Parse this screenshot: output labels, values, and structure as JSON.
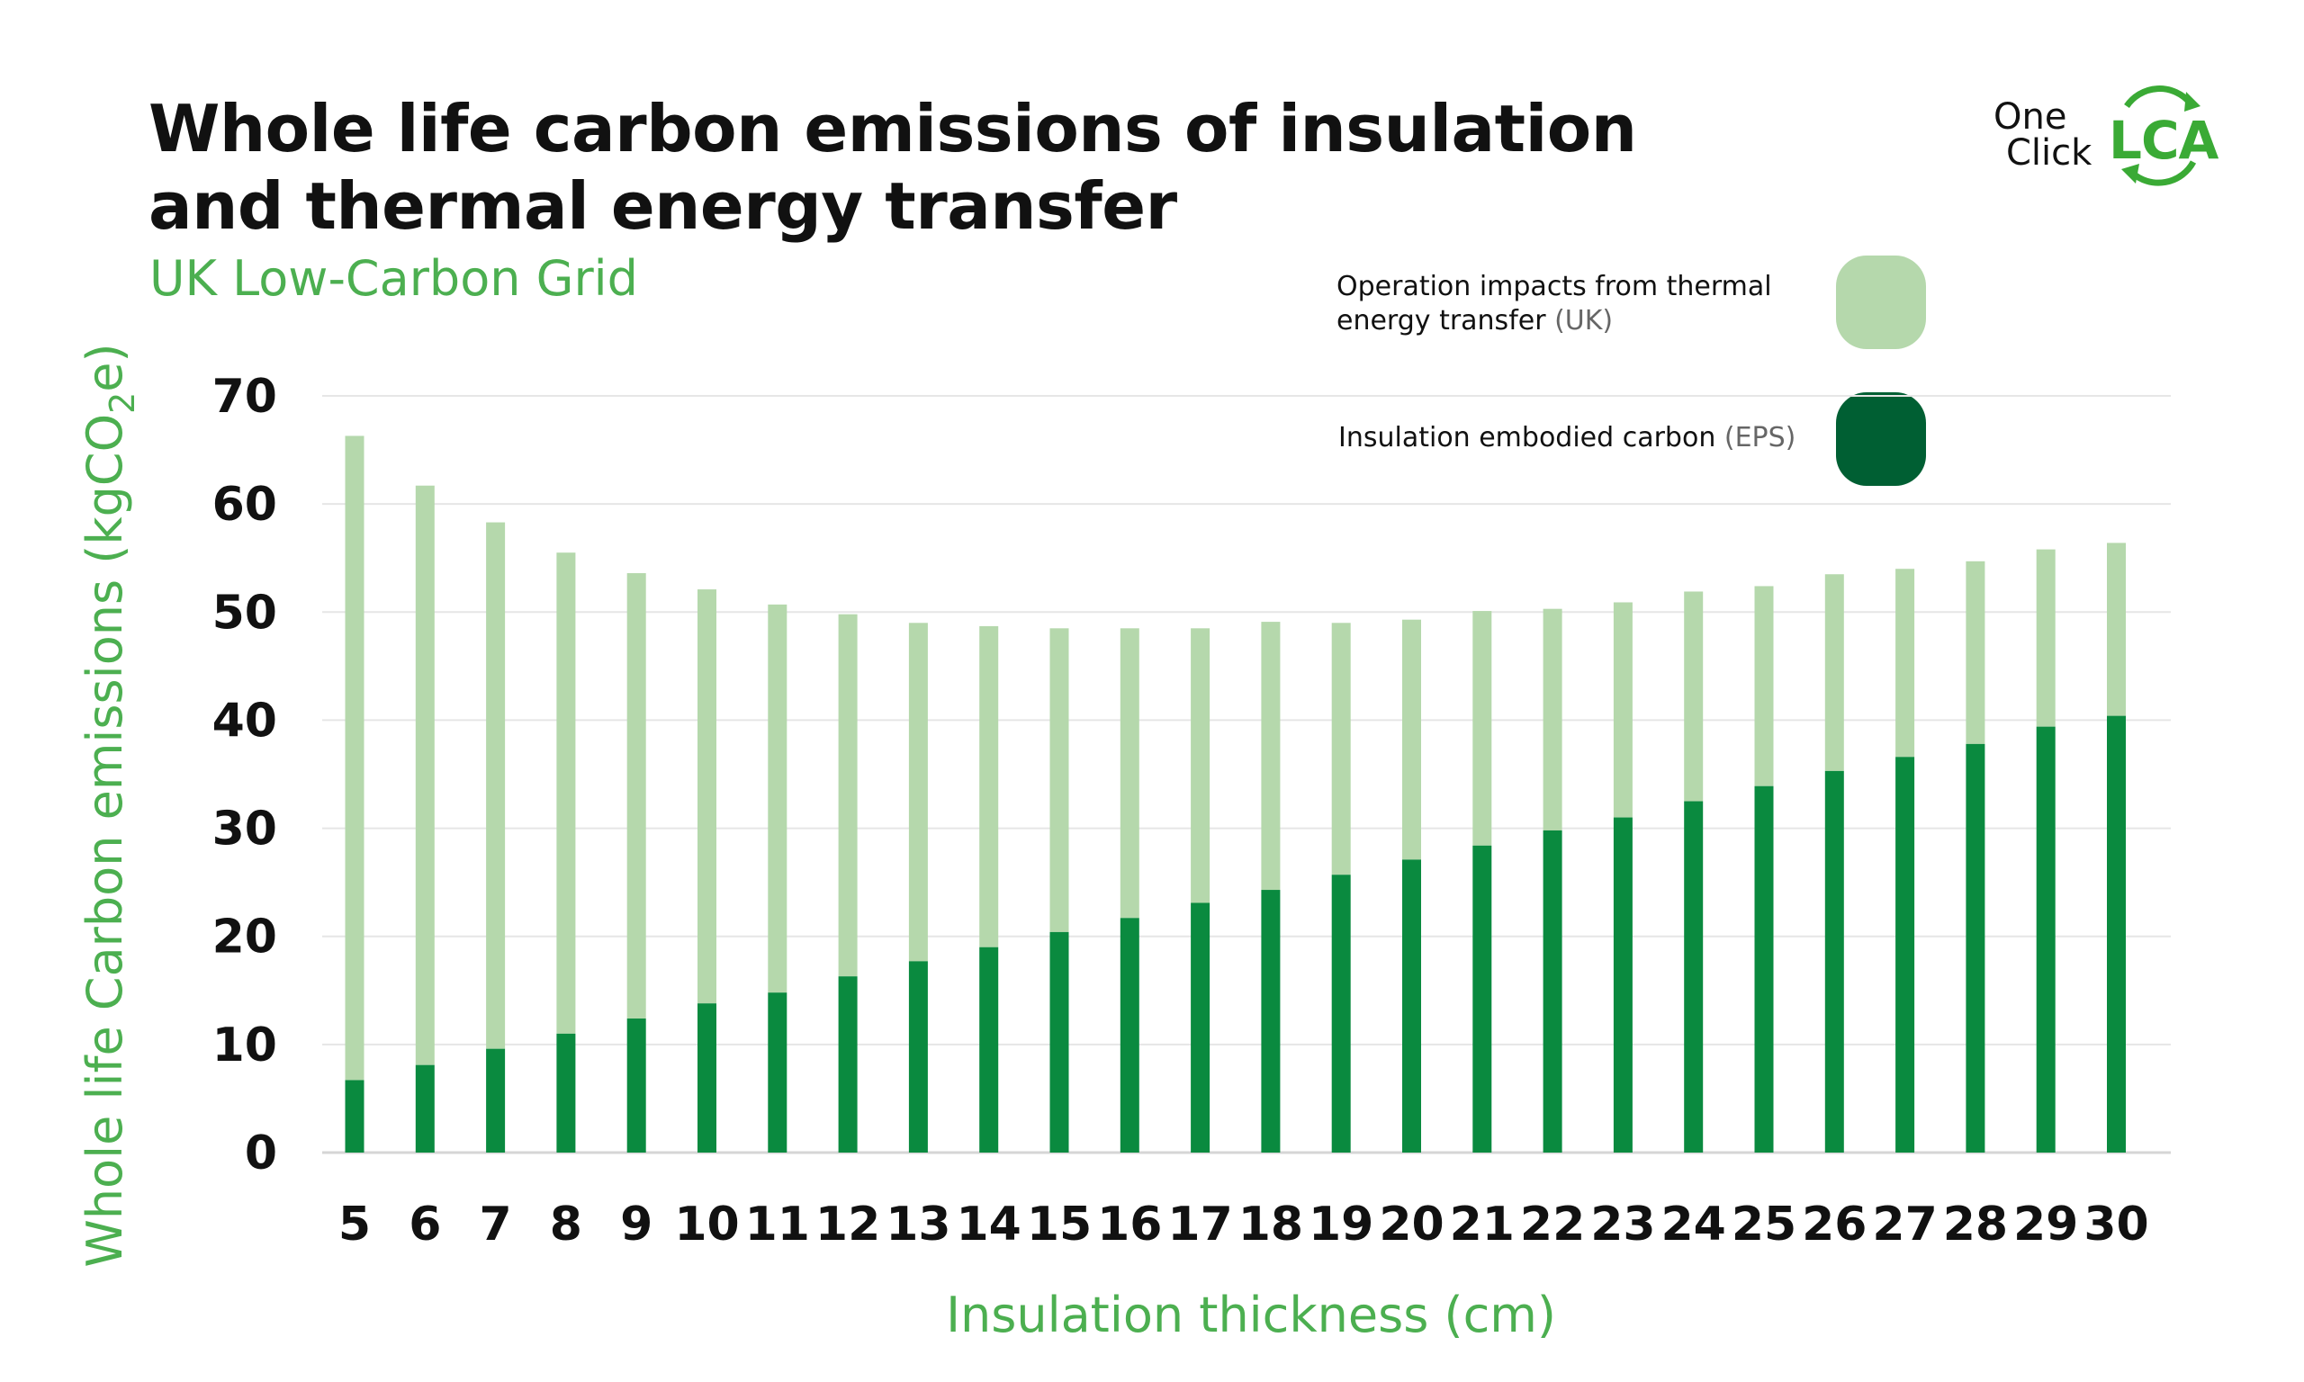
{
  "title_line1": "Whole life carbon emissions of insulation",
  "title_line2": "and thermal energy transfer",
  "subtitle": "UK Low-Carbon Grid",
  "logo": {
    "one": "One",
    "click": "Click",
    "lca": "LCA"
  },
  "legend": [
    {
      "label_a": "Operation impacts from thermal",
      "label_b": "energy transfer",
      "note": "(UK)",
      "color": "#b5d8ac"
    },
    {
      "label_a": "Insulation embodied carbon",
      "note": "(EPS)",
      "color": "#005f33"
    }
  ],
  "chart_data": {
    "type": "bar",
    "stacked": true,
    "title": "Whole life carbon emissions of insulation and thermal energy transfer",
    "subtitle": "UK Low-Carbon Grid",
    "xlabel": "Insulation thickness (cm)",
    "ylabel_parts": {
      "main": "Whole life Carbon emissions (kgCO",
      "sub": "2",
      "tail": "e)"
    },
    "ylim": [
      0,
      70
    ],
    "yticks": [
      0,
      10,
      20,
      30,
      40,
      50,
      60,
      70
    ],
    "grid": true,
    "categories": [
      "5",
      "6",
      "7",
      "8",
      "9",
      "10",
      "11",
      "12",
      "13",
      "14",
      "15",
      "16",
      "17",
      "18",
      "19",
      "20",
      "21",
      "22",
      "23",
      "24",
      "25",
      "26",
      "27",
      "28",
      "29",
      "30"
    ],
    "series": [
      {
        "name": "Insulation embodied carbon (EPS)",
        "color": "#0a8a3f",
        "values": [
          6.7,
          8.1,
          9.6,
          11.0,
          12.4,
          13.8,
          14.8,
          16.3,
          17.7,
          19.0,
          20.4,
          21.7,
          23.1,
          24.3,
          25.7,
          27.1,
          28.4,
          29.8,
          31.0,
          32.5,
          33.9,
          35.3,
          36.6,
          37.8,
          39.4,
          40.4
        ]
      },
      {
        "name": "Operation impacts from thermal energy transfer (UK)",
        "color": "#b5d8ac",
        "values": [
          59.6,
          53.6,
          48.7,
          44.5,
          41.2,
          38.3,
          35.9,
          33.5,
          31.3,
          29.7,
          28.1,
          26.8,
          25.4,
          24.8,
          23.3,
          22.2,
          21.7,
          20.5,
          19.9,
          19.4,
          18.5,
          18.2,
          17.4,
          16.9,
          16.4,
          16.0
        ]
      }
    ]
  }
}
